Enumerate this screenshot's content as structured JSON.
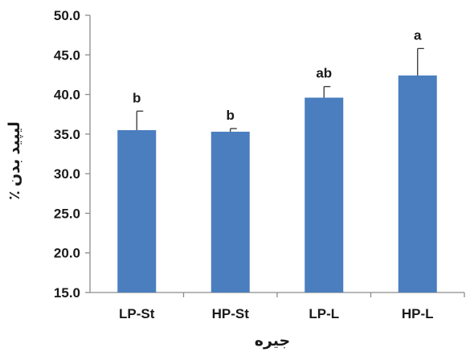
{
  "chart_data": {
    "type": "bar",
    "title": "",
    "xlabel": "جیره",
    "ylabel": "لیپید بدن ٪",
    "categories": [
      "LP-St",
      "HP-St",
      "LP-L",
      "HP-L"
    ],
    "values": [
      35.5,
      35.3,
      39.6,
      42.4
    ],
    "error_upper": [
      2.4,
      0.4,
      1.4,
      3.4
    ],
    "significance_letters": [
      "b",
      "b",
      "ab",
      "a"
    ],
    "ylim": [
      15.0,
      50.0
    ],
    "yticks": [
      "15.0",
      "20.0",
      "25.0",
      "30.0",
      "35.0",
      "40.0",
      "45.0",
      "50.0"
    ],
    "ytick_values": [
      15,
      20,
      25,
      30,
      35,
      40,
      45,
      50
    ],
    "grid": false,
    "legend": "none",
    "bar_color": "#4a7ebf",
    "axis_color": "#8c8c8c",
    "text_color": "#1a1a1a"
  }
}
